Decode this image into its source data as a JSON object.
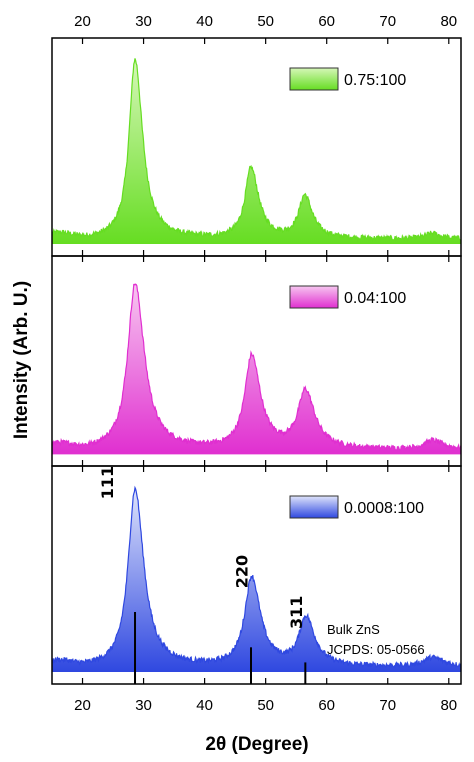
{
  "chart_data": {
    "type": "line",
    "xlabel": "2θ (Degree)",
    "ylabel": "Intensity (Arb. U.)",
    "xlim": [
      15,
      82
    ],
    "x_ticks": [
      "20",
      "30",
      "40",
      "50",
      "60",
      "70",
      "80"
    ],
    "x_tick_values": [
      20,
      30,
      40,
      50,
      60,
      70,
      80
    ],
    "y_ticks_shown": false,
    "layout": "three vertically stacked panels sharing the x axis",
    "series": [
      {
        "name": "0.75:100",
        "color": "#66dd22",
        "fill_light": "#d6f7b8",
        "peaks": [
          {
            "center": 28.6,
            "height": 0.97,
            "width": 1.3
          },
          {
            "center": 47.6,
            "height": 0.38,
            "width": 1.3
          },
          {
            "center": 56.4,
            "height": 0.23,
            "width": 1.3
          },
          {
            "center": 77.2,
            "height": 0.03,
            "width": 1.5
          }
        ]
      },
      {
        "name": "0.04:100",
        "color": "#e02fd0",
        "fill_light": "#f7c6f0",
        "peaks": [
          {
            "center": 28.6,
            "height": 0.93,
            "width": 1.6
          },
          {
            "center": 47.7,
            "height": 0.52,
            "width": 1.5
          },
          {
            "center": 56.5,
            "height": 0.32,
            "width": 1.6
          },
          {
            "center": 77.3,
            "height": 0.05,
            "width": 1.8
          }
        ]
      },
      {
        "name": "0.0008:100",
        "color": "#2f48e0",
        "fill_light": "#dfe4fb",
        "peaks": [
          {
            "center": 28.6,
            "height": 0.96,
            "width": 1.5
          },
          {
            "center": 47.7,
            "height": 0.48,
            "width": 1.5
          },
          {
            "center": 56.6,
            "height": 0.26,
            "width": 1.5
          },
          {
            "center": 77.3,
            "height": 0.05,
            "width": 2.0
          }
        ]
      }
    ],
    "peak_labels": [
      {
        "text": "111",
        "x": 28.6
      },
      {
        "text": "220",
        "x": 47.7
      },
      {
        "text": "311",
        "x": 56.6
      }
    ],
    "reference": {
      "label_line1": "Bulk ZnS",
      "label_line2": "JCPDS: 05-0566",
      "bars": [
        {
          "x": 28.6,
          "relative_intensity": 1.0
        },
        {
          "x": 47.6,
          "relative_intensity": 0.51
        },
        {
          "x": 56.5,
          "relative_intensity": 0.3
        }
      ]
    }
  }
}
